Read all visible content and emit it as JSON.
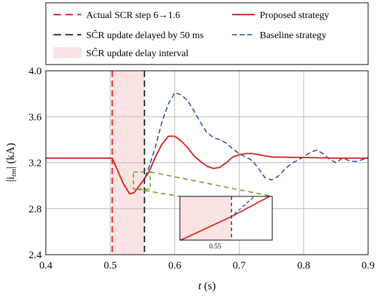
{
  "chart_data": {
    "type": "line",
    "xlabel_var": "t",
    "xlabel_unit": "(s)",
    "ylabel_text": "|i",
    "ylabel_sub": "tm",
    "ylabel_unit": "| (kA)",
    "xlim": [
      0.4,
      0.9
    ],
    "ylim": [
      2.4,
      4.0
    ],
    "xticks": [
      "0.4",
      "0.5",
      "0.6",
      "0.7",
      "0.8",
      "0.9"
    ],
    "yticks": [
      "2.4",
      "2.8",
      "3.2",
      "3.6",
      "4.0"
    ],
    "grid": true,
    "legend_position": "top",
    "events": {
      "actual_step_t": 0.503,
      "delayed_update_t": 0.553
    },
    "legend": [
      {
        "key": "actual",
        "label": "Actual SCR step 6→1.6",
        "style": "dashed",
        "color": "#e8323c"
      },
      {
        "key": "delayed",
        "label": "SĈR update delayed by 50 ms",
        "style": "dashed",
        "color": "#404040"
      },
      {
        "key": "interval",
        "label": "SĈR update delay interval",
        "style": "patch",
        "color": "#fbe3e3"
      },
      {
        "key": "proposed",
        "label": "Proposed strategy",
        "style": "solid",
        "color": "#d62728"
      },
      {
        "key": "baseline",
        "label": "Baseline strategy",
        "style": "dashed",
        "color": "#1f3f9f"
      }
    ],
    "series": [
      {
        "name": "Proposed strategy",
        "color": "#d62728",
        "x": [
          0.4,
          0.5,
          0.503,
          0.51,
          0.52,
          0.53,
          0.537,
          0.545,
          0.553,
          0.56,
          0.57,
          0.58,
          0.59,
          0.6,
          0.61,
          0.62,
          0.63,
          0.64,
          0.65,
          0.66,
          0.67,
          0.68,
          0.69,
          0.7,
          0.71,
          0.72,
          0.73,
          0.74,
          0.75,
          0.8,
          0.85,
          0.9
        ],
        "y": [
          3.24,
          3.24,
          3.24,
          3.15,
          3.02,
          2.93,
          2.94,
          3.0,
          3.06,
          3.12,
          3.25,
          3.36,
          3.43,
          3.43,
          3.39,
          3.33,
          3.26,
          3.21,
          3.17,
          3.15,
          3.16,
          3.2,
          3.25,
          3.27,
          3.28,
          3.28,
          3.27,
          3.26,
          3.25,
          3.245,
          3.24,
          3.24
        ]
      },
      {
        "name": "Baseline strategy",
        "color": "#1f3f9f",
        "x": [
          0.4,
          0.5,
          0.503,
          0.51,
          0.52,
          0.53,
          0.537,
          0.545,
          0.553,
          0.56,
          0.57,
          0.58,
          0.59,
          0.6,
          0.61,
          0.62,
          0.63,
          0.64,
          0.65,
          0.66,
          0.67,
          0.68,
          0.69,
          0.7,
          0.71,
          0.72,
          0.73,
          0.74,
          0.75,
          0.76,
          0.77,
          0.78,
          0.79,
          0.8,
          0.81,
          0.82,
          0.83,
          0.84,
          0.85,
          0.86,
          0.87,
          0.88,
          0.9
        ],
        "y": [
          3.24,
          3.24,
          3.24,
          3.15,
          3.02,
          2.93,
          2.94,
          3.0,
          3.06,
          3.16,
          3.34,
          3.55,
          3.71,
          3.81,
          3.79,
          3.74,
          3.65,
          3.55,
          3.46,
          3.42,
          3.4,
          3.37,
          3.32,
          3.28,
          3.25,
          3.22,
          3.15,
          3.07,
          3.05,
          3.08,
          3.14,
          3.19,
          3.22,
          3.25,
          3.29,
          3.31,
          3.28,
          3.23,
          3.2,
          3.24,
          3.22,
          3.21,
          3.24
        ]
      }
    ],
    "inset": {
      "xlim": [
        0.5435,
        0.5605
      ],
      "ylim": [
        2.99,
        3.12
      ],
      "tick_label": "0.55",
      "tick_value": 0.55,
      "zoom_x": [
        0.536,
        0.562
      ],
      "zoom_y": [
        2.97,
        3.12
      ]
    }
  }
}
